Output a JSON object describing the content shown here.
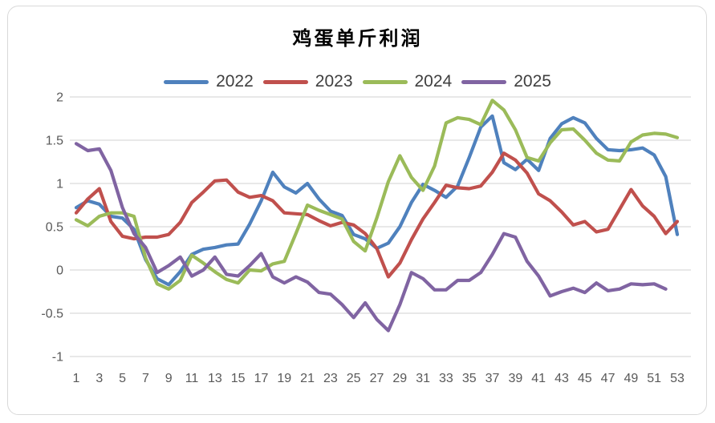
{
  "chart_data": {
    "type": "line",
    "title": "鸡蛋单斤利润",
    "xlabel": "",
    "ylabel": "",
    "x_unit": "week",
    "x_range": [
      1,
      53
    ],
    "x_tick_labels": [
      "1",
      "3",
      "5",
      "7",
      "9",
      "11",
      "13",
      "15",
      "17",
      "19",
      "21",
      "23",
      "25",
      "27",
      "29",
      "31",
      "33",
      "35",
      "37",
      "39",
      "41",
      "43",
      "45",
      "47",
      "49",
      "51",
      "53"
    ],
    "y_tick_values": [
      2,
      1.5,
      1,
      0.5,
      0,
      -0.5,
      -1
    ],
    "y_tick_labels": [
      "2",
      "1.5",
      "1",
      "0.5",
      "0",
      "-0.5",
      "-1"
    ],
    "ylim": [
      -1,
      2
    ],
    "grid": true,
    "legend_position": "top",
    "colors": {
      "grid": "#d9d9d9",
      "axis_text": "#595959",
      "legend_text": "#3f3f3f",
      "frame_border": "#d9d9d9",
      "background": "#ffffff"
    },
    "series": [
      {
        "name": "2022",
        "color": "#4F81BD",
        "values": [
          0.72,
          0.8,
          0.76,
          0.62,
          0.6,
          0.47,
          0.12,
          -0.1,
          -0.17,
          -0.02,
          0.18,
          0.24,
          0.26,
          0.29,
          0.3,
          0.53,
          0.8,
          1.13,
          0.96,
          0.89,
          1.0,
          0.82,
          0.68,
          0.63,
          0.41,
          0.36,
          0.25,
          0.31,
          0.5,
          0.78,
          0.99,
          0.92,
          0.84,
          0.97,
          1.3,
          1.65,
          1.78,
          1.24,
          1.16,
          1.28,
          1.15,
          1.52,
          1.69,
          1.76,
          1.7,
          1.52,
          1.39,
          1.38,
          1.39,
          1.41,
          1.33,
          1.08,
          0.41
        ]
      },
      {
        "name": "2023",
        "color": "#C0504D",
        "values": [
          0.66,
          0.82,
          0.94,
          0.56,
          0.39,
          0.36,
          0.38,
          0.38,
          0.41,
          0.55,
          0.78,
          0.9,
          1.03,
          1.04,
          0.9,
          0.84,
          0.86,
          0.8,
          0.66,
          0.65,
          0.64,
          0.57,
          0.51,
          0.55,
          0.52,
          0.42,
          0.25,
          -0.08,
          0.08,
          0.35,
          0.59,
          0.78,
          0.98,
          0.95,
          0.94,
          0.97,
          1.13,
          1.35,
          1.27,
          1.12,
          0.88,
          0.8,
          0.67,
          0.52,
          0.56,
          0.44,
          0.47,
          0.7,
          0.93,
          0.74,
          0.62,
          0.42,
          0.56
        ]
      },
      {
        "name": "2024",
        "color": "#9BBB59",
        "values": [
          0.58,
          0.51,
          0.62,
          0.66,
          0.66,
          0.62,
          0.14,
          -0.16,
          -0.22,
          -0.12,
          0.17,
          0.08,
          -0.02,
          -0.11,
          -0.15,
          0.0,
          -0.01,
          0.07,
          0.1,
          0.42,
          0.75,
          0.69,
          0.64,
          0.59,
          0.33,
          0.22,
          0.6,
          1.02,
          1.32,
          1.07,
          0.92,
          1.2,
          1.7,
          1.76,
          1.74,
          1.68,
          1.96,
          1.85,
          1.62,
          1.3,
          1.26,
          1.47,
          1.62,
          1.63,
          1.5,
          1.35,
          1.27,
          1.26,
          1.48,
          1.56,
          1.58,
          1.57,
          1.53
        ]
      },
      {
        "name": "2025",
        "color": "#8064A2",
        "values": [
          1.46,
          1.38,
          1.4,
          1.15,
          0.72,
          0.42,
          0.26,
          -0.03,
          0.05,
          0.15,
          -0.07,
          0.0,
          0.15,
          -0.05,
          -0.07,
          0.05,
          0.19,
          -0.08,
          -0.15,
          -0.08,
          -0.14,
          -0.26,
          -0.28,
          -0.4,
          -0.55,
          -0.38,
          -0.57,
          -0.7,
          -0.4,
          -0.03,
          -0.1,
          -0.23,
          -0.23,
          -0.12,
          -0.12,
          -0.03,
          0.18,
          0.42,
          0.38,
          0.1,
          -0.07,
          -0.3,
          -0.25,
          -0.21,
          -0.26,
          -0.15,
          -0.24,
          -0.22,
          -0.16,
          -0.17,
          -0.16,
          -0.22
        ]
      }
    ]
  }
}
